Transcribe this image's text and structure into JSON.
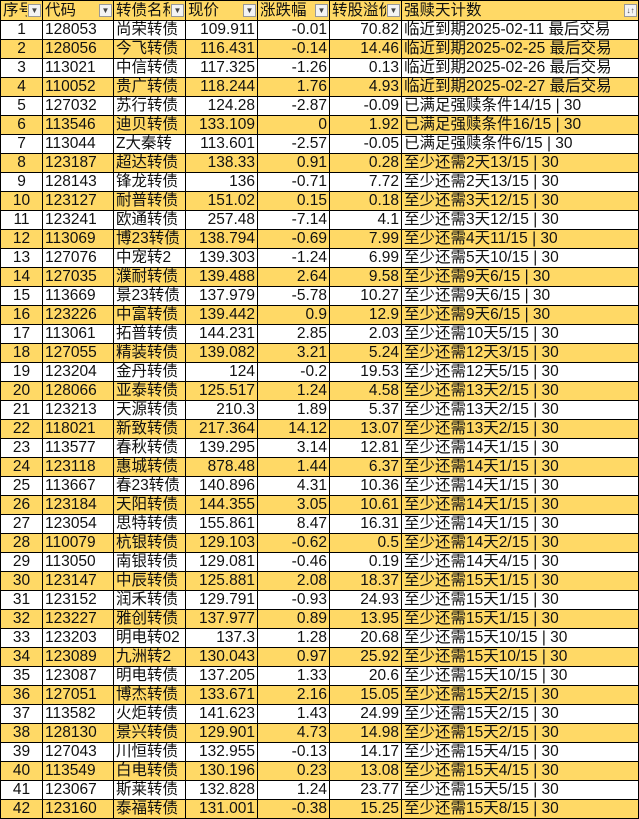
{
  "colors": {
    "highlight": "#ffd966",
    "header": "#ffd966"
  },
  "headers": [
    "序号",
    "代码",
    "转债名称",
    "现价",
    "涨跌幅",
    "转股溢价",
    "强赎天计数"
  ],
  "header_icons": [
    "filter-dropdown-icon",
    "filter-dropdown-icon",
    "filter-dropdown-icon",
    "filter-dropdown-icon",
    "filter-dropdown-icon",
    "filter-dropdown-icon",
    "sort-filter-icon"
  ],
  "rows": [
    [
      "1",
      "128053",
      "尚荣转债",
      "109.911",
      "-0.01",
      "70.82",
      "临近到期2025-02-11 最后交易"
    ],
    [
      "2",
      "128056",
      "今飞转债",
      "116.431",
      "-0.14",
      "14.46",
      "临近到期2025-02-25 最后交易"
    ],
    [
      "3",
      "113021",
      "中信转债",
      "117.325",
      "-1.26",
      "0.13",
      "临近到期2025-02-26 最后交易"
    ],
    [
      "4",
      "110052",
      "贵广转债",
      "118.244",
      "1.76",
      "4.93",
      "临近到期2025-02-27 最后交易"
    ],
    [
      "5",
      "127032",
      "苏行转债",
      "124.28",
      "-2.87",
      "-0.09",
      "已满足强赎条件14/15 | 30"
    ],
    [
      "6",
      "113546",
      "迪贝转债",
      "133.109",
      "0",
      "1.92",
      "已满足强赎条件16/15 | 30"
    ],
    [
      "7",
      "113044",
      "Z大秦转",
      "113.601",
      "-2.57",
      "-0.05",
      "已满足强赎条件6/15 | 30"
    ],
    [
      "8",
      "123187",
      "超达转债",
      "138.33",
      "0.91",
      "0.28",
      "至少还需2天13/15 | 30"
    ],
    [
      "9",
      "128143",
      "锋龙转债",
      "136",
      "-0.71",
      "7.72",
      "至少还需2天13/15 | 30"
    ],
    [
      "10",
      "123127",
      "耐普转债",
      "151.02",
      "0.15",
      "0.18",
      "至少还需3天12/15 | 30"
    ],
    [
      "11",
      "123241",
      "欧通转债",
      "257.48",
      "-7.14",
      "4.1",
      "至少还需3天12/15 | 30"
    ],
    [
      "12",
      "113069",
      "博23转债",
      "138.794",
      "-0.69",
      "7.99",
      "至少还需4天11/15 | 30"
    ],
    [
      "13",
      "127076",
      "中宠转2",
      "139.303",
      "-1.24",
      "6.99",
      "至少还需5天10/15 | 30"
    ],
    [
      "14",
      "127035",
      "濮耐转债",
      "139.488",
      "2.64",
      "9.58",
      "至少还需9天6/15 | 30"
    ],
    [
      "15",
      "113669",
      "景23转债",
      "137.979",
      "-5.78",
      "10.27",
      "至少还需9天6/15 | 30"
    ],
    [
      "16",
      "123226",
      "中富转债",
      "139.442",
      "0.9",
      "12.9",
      "至少还需9天6/15 | 30"
    ],
    [
      "17",
      "113061",
      "拓普转债",
      "144.231",
      "2.85",
      "2.03",
      "至少还需10天5/15 | 30"
    ],
    [
      "18",
      "127055",
      "精装转债",
      "139.082",
      "3.21",
      "5.24",
      "至少还需12天3/15 | 30"
    ],
    [
      "19",
      "123204",
      "金丹转债",
      "124",
      "-0.2",
      "19.53",
      "至少还需12天5/15 | 30"
    ],
    [
      "20",
      "128066",
      "亚泰转债",
      "125.517",
      "1.24",
      "4.58",
      "至少还需13天2/15 | 30"
    ],
    [
      "21",
      "123213",
      "天源转债",
      "210.3",
      "1.89",
      "5.37",
      "至少还需13天2/15 | 30"
    ],
    [
      "22",
      "118021",
      "新致转债",
      "217.364",
      "14.12",
      "13.07",
      "至少还需13天2/15 | 30"
    ],
    [
      "23",
      "113577",
      "春秋转债",
      "139.295",
      "3.14",
      "12.81",
      "至少还需14天1/15 | 30"
    ],
    [
      "24",
      "123118",
      "惠城转债",
      "878.48",
      "1.44",
      "6.37",
      "至少还需14天1/15 | 30"
    ],
    [
      "25",
      "113667",
      "春23转债",
      "140.896",
      "4.31",
      "10.36",
      "至少还需14天1/15 | 30"
    ],
    [
      "26",
      "123184",
      "天阳转债",
      "144.355",
      "3.05",
      "10.61",
      "至少还需14天1/15 | 30"
    ],
    [
      "27",
      "123054",
      "思特转债",
      "155.861",
      "8.47",
      "16.31",
      "至少还需14天1/15 | 30"
    ],
    [
      "28",
      "110079",
      "杭银转债",
      "129.103",
      "-0.62",
      "0.5",
      "至少还需14天2/15 | 30"
    ],
    [
      "29",
      "113050",
      "南银转债",
      "129.081",
      "-0.46",
      "0.19",
      "至少还需14天4/15 | 30"
    ],
    [
      "30",
      "123147",
      "中辰转债",
      "125.881",
      "2.08",
      "18.37",
      "至少还需15天1/15 | 30"
    ],
    [
      "31",
      "123152",
      "润禾转债",
      "129.791",
      "-0.93",
      "24.93",
      "至少还需15天1/15 | 30"
    ],
    [
      "32",
      "123227",
      "雅创转债",
      "137.977",
      "0.89",
      "13.95",
      "至少还需15天1/15 | 30"
    ],
    [
      "33",
      "123203",
      "明电转02",
      "137.3",
      "1.28",
      "20.68",
      "至少还需15天10/15 | 30"
    ],
    [
      "34",
      "123089",
      "九洲转2",
      "130.043",
      "0.97",
      "25.92",
      "至少还需15天10/15 | 30"
    ],
    [
      "35",
      "123087",
      "明电转债",
      "137.205",
      "1.33",
      "20.6",
      "至少还需15天10/15 | 30"
    ],
    [
      "36",
      "127051",
      "博杰转债",
      "133.671",
      "2.16",
      "15.05",
      "至少还需15天2/15 | 30"
    ],
    [
      "37",
      "113582",
      "火炬转债",
      "141.623",
      "1.43",
      "24.99",
      "至少还需15天2/15 | 30"
    ],
    [
      "38",
      "128130",
      "景兴转债",
      "129.901",
      "4.73",
      "14.98",
      "至少还需15天2/15 | 30"
    ],
    [
      "39",
      "127043",
      "川恒转债",
      "132.955",
      "-0.13",
      "14.17",
      "至少还需15天4/15 | 30"
    ],
    [
      "40",
      "113549",
      "白电转债",
      "130.196",
      "0.23",
      "13.08",
      "至少还需15天4/15 | 30"
    ],
    [
      "41",
      "123067",
      "斯莱转债",
      "132.828",
      "1.24",
      "23.77",
      "至少还需15天5/15 | 30"
    ],
    [
      "42",
      "123160",
      "泰福转债",
      "131.001",
      "-0.38",
      "15.25",
      "至少还需15天8/15 | 30"
    ]
  ]
}
